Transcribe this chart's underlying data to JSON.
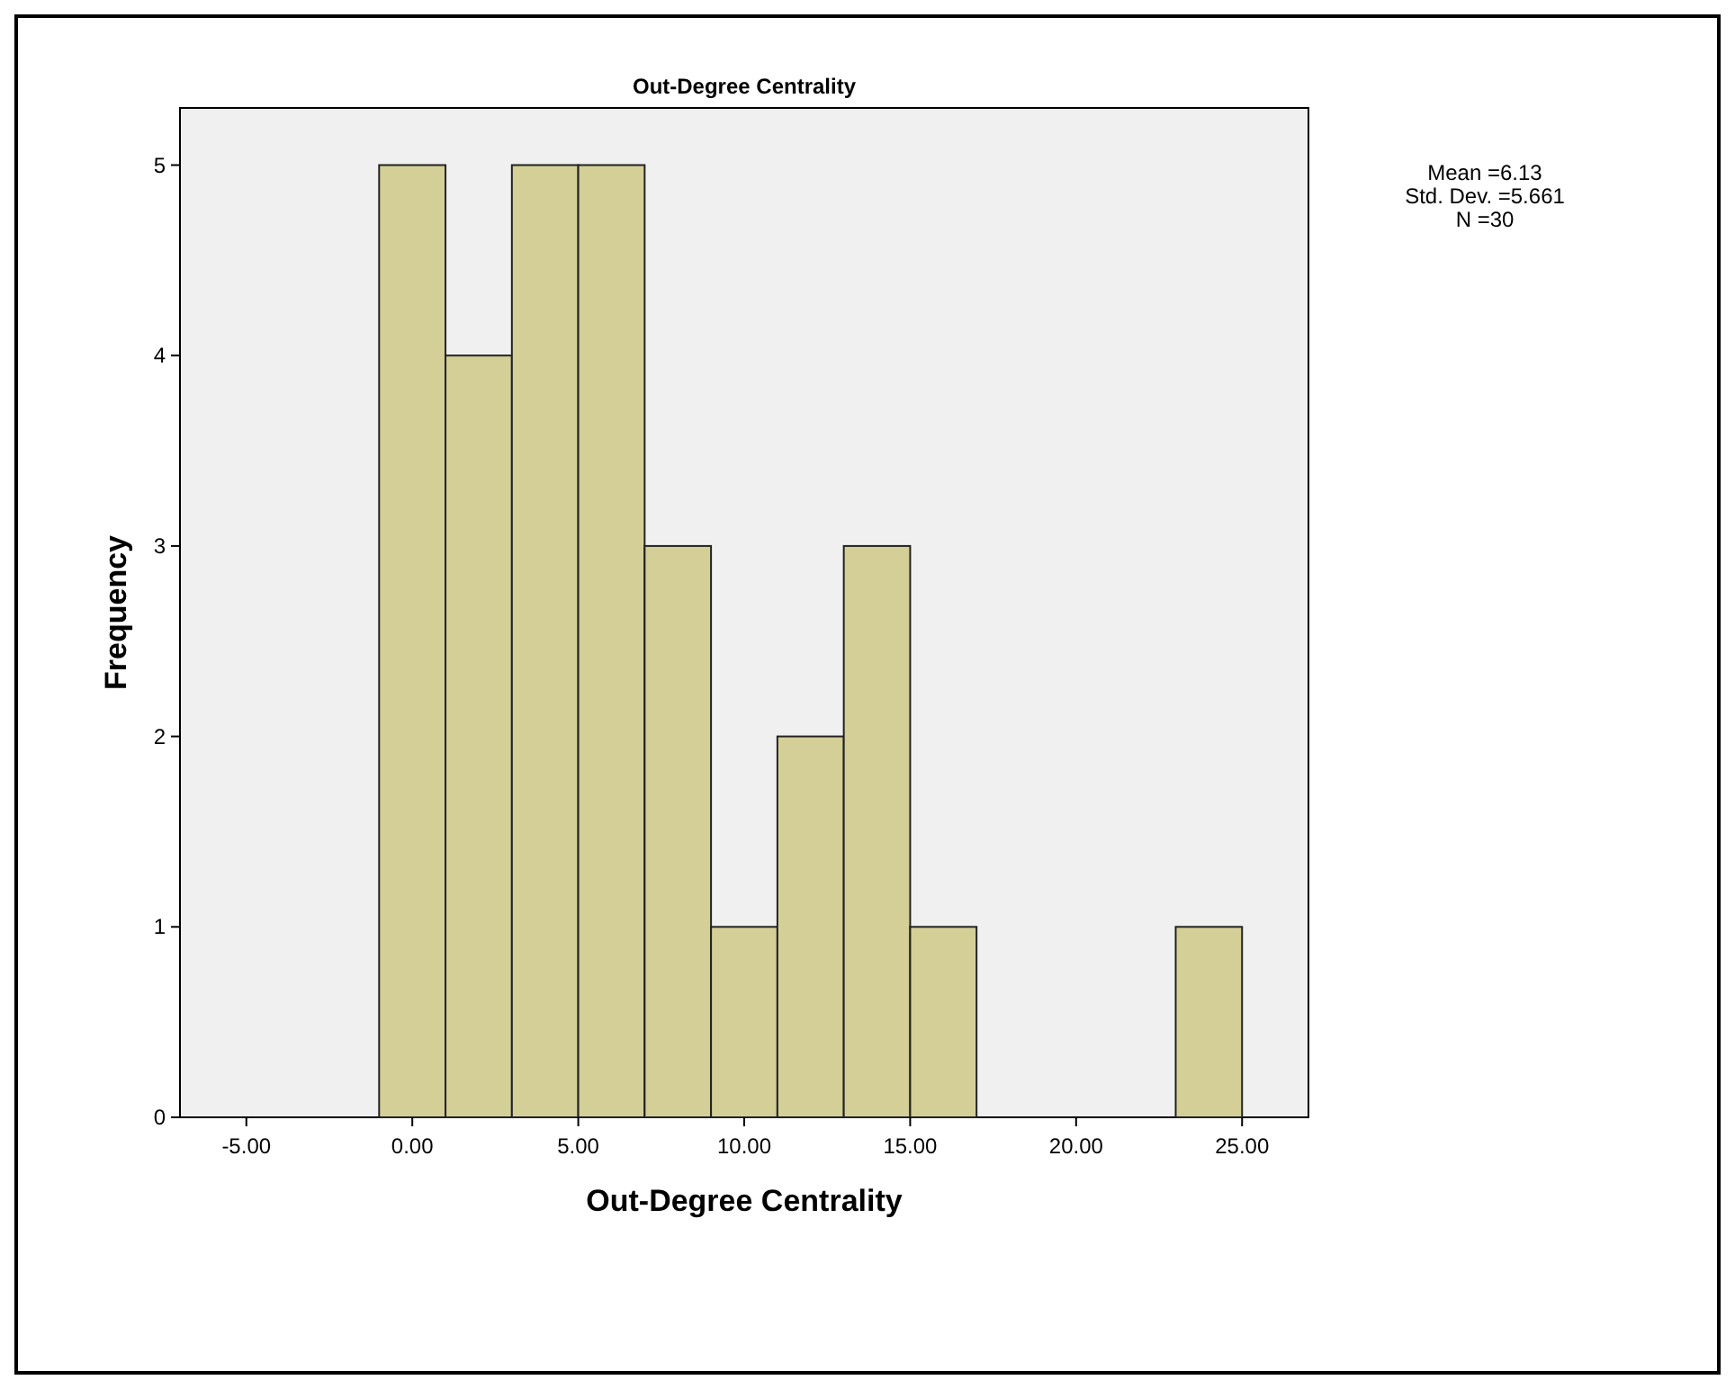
{
  "chart_data": {
    "type": "histogram",
    "title": "Out-Degree Centrality",
    "xlabel": "Out-Degree Centrality",
    "ylabel": "Frequency",
    "bins": [
      -1,
      1,
      3,
      5,
      7,
      9,
      11,
      13,
      15,
      17,
      19,
      21,
      23,
      25
    ],
    "values": [
      5,
      4,
      5,
      5,
      3,
      1,
      2,
      3,
      1,
      0,
      0,
      0,
      1
    ],
    "color": "#d4cf97",
    "xlim": [
      -7,
      27
    ],
    "xticks": [
      {
        "value": -5,
        "label": "-5.00"
      },
      {
        "value": 0,
        "label": "0.00"
      },
      {
        "value": 5,
        "label": "5.00"
      },
      {
        "value": 10,
        "label": "10.00"
      },
      {
        "value": 15,
        "label": "15.00"
      },
      {
        "value": 20,
        "label": "20.00"
      },
      {
        "value": 25,
        "label": "25.00"
      }
    ],
    "ylim": [
      0,
      5.3
    ],
    "yticks": [
      0,
      1,
      2,
      3,
      4,
      5
    ],
    "annotations": [
      "Mean =6.13",
      "Std. Dev. =5.661",
      "N =30"
    ],
    "grid": false
  }
}
